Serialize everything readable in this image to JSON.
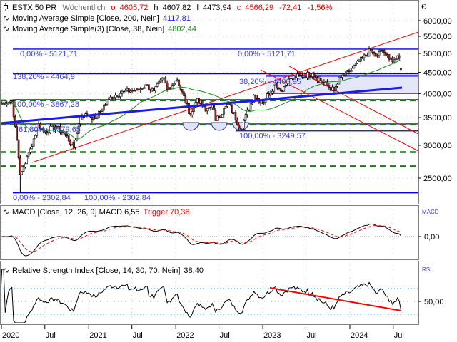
{
  "header": {
    "symbol": "ESTX 50 PR",
    "period": "Wöchentlich",
    "open_label": "o",
    "open": "4605,72",
    "high_label": "h",
    "high": "4607,82",
    "low_label": "l",
    "low": "4473,94",
    "close_label": "c",
    "close": "4566,29",
    "change": "-72,41",
    "change_pct": "-1,56%"
  },
  "legend": {
    "ma200": {
      "label": "Moving Average Simple  [Close, 200, Nein]",
      "value": "4117,81"
    },
    "ma38": {
      "label": "Moving Average Simple(3)  [Close, 38, Nein]",
      "value": "4802,44"
    },
    "macd": {
      "label": "MACD  [Close, 12, 26, 9]  MACD 6,55",
      "trigger": "Trigger 70,36"
    },
    "rsi": {
      "label": "Relative Strength Index  [Close, 14, 30, 70, Nein]",
      "value": "38,40"
    }
  },
  "colors": {
    "up": "#ffffff",
    "down": "#e02020",
    "fib": "#0000ee",
    "support": "#1a7a1a",
    "trend": "#ff0000",
    "ma38": "#1a8a1a",
    "macd": "#000000",
    "trigger": "#ff0000",
    "zone": "#e4e6fa"
  },
  "fib_labels": {
    "a_top": "0,00% - 5121,71",
    "b_top": "0,00% - 5121,71",
    "a_1382": "138,20% - 4464,9",
    "b_382": "38,20% - 4406,95",
    "a_100": "100,00% - 3867,28",
    "a_618": "61,80% - 3379,65",
    "b_100": "100,00% - 3249,57",
    "a_bottom": "0,00% - 2302,84",
    "a_bottom2": "100,00% - 2302,84"
  },
  "chart_data": [
    {
      "type": "candlestick",
      "title": "ESTX 50 PR",
      "scale": "log",
      "currency": "€",
      "ylim": [
        2200,
        6200
      ],
      "y_ticks": [
        "6000,00",
        "5500,00",
        "5000,00",
        "4500,00",
        "4000,00",
        "3500,00",
        "3000,00",
        "2500,00"
      ],
      "y_tick_values": [
        6000,
        5500,
        5000,
        4500,
        4000,
        3500,
        3000,
        2500
      ],
      "x_ticks": [
        "2020",
        "Jul",
        "2021",
        "Jul",
        "2022",
        "Jul",
        "2023",
        "Jul",
        "2024",
        "Jul"
      ],
      "x_tick_dates": [
        "2020-01-01",
        "2020-07-01",
        "2021-01-01",
        "2021-07-01",
        "2022-01-01",
        "2022-07-01",
        "2023-01-01",
        "2023-07-01",
        "2024-01-01",
        "2024-07-01"
      ],
      "grid": true,
      "close_anchors": [
        [
          "2019-12-27",
          3775
        ],
        [
          "2020-02-14",
          3840
        ],
        [
          "2020-02-28",
          3330
        ],
        [
          "2020-03-20",
          2550
        ],
        [
          "2020-04-03",
          2660
        ],
        [
          "2020-04-30",
          2930
        ],
        [
          "2020-06-05",
          3380
        ],
        [
          "2020-06-26",
          3230
        ],
        [
          "2020-08-14",
          3330
        ],
        [
          "2020-09-25",
          3190
        ],
        [
          "2020-10-30",
          2960
        ],
        [
          "2020-11-27",
          3530
        ],
        [
          "2020-12-31",
          3550
        ],
        [
          "2021-01-29",
          3480
        ],
        [
          "2021-03-31",
          3920
        ],
        [
          "2021-05-28",
          4040
        ],
        [
          "2021-07-30",
          4090
        ],
        [
          "2021-08-27",
          4200
        ],
        [
          "2021-09-30",
          4050
        ],
        [
          "2021-11-12",
          4370
        ],
        [
          "2021-11-26",
          4090
        ],
        [
          "2021-12-31",
          4300
        ],
        [
          "2022-01-07",
          4320
        ],
        [
          "2022-03-04",
          3550
        ],
        [
          "2022-03-31",
          3900
        ],
        [
          "2022-05-06",
          3630
        ],
        [
          "2022-06-03",
          3790
        ],
        [
          "2022-06-17",
          3440
        ],
        [
          "2022-08-12",
          3790
        ],
        [
          "2022-09-30",
          3280
        ],
        [
          "2022-11-25",
          3960
        ],
        [
          "2022-12-30",
          3790
        ],
        [
          "2023-02-24",
          4240
        ],
        [
          "2023-03-17",
          4060
        ],
        [
          "2023-04-28",
          4360
        ],
        [
          "2023-07-28",
          4470
        ],
        [
          "2023-10-27",
          4060
        ],
        [
          "2023-11-24",
          4380
        ],
        [
          "2023-12-29",
          4520
        ],
        [
          "2024-03-28",
          5080
        ],
        [
          "2024-04-19",
          4920
        ],
        [
          "2024-05-17",
          5090
        ],
        [
          "2024-06-14",
          4840
        ],
        [
          "2024-07-26",
          4860
        ],
        [
          "2024-08-02",
          4566.29
        ]
      ],
      "last_candle": {
        "open": 4605.72,
        "high": 4607.82,
        "low": 4473.94,
        "close": 4566.29
      },
      "all_time_low": {
        "date": "2020-03-20",
        "value": 2302.84
      },
      "fib_levels": [
        5121.71,
        4464.9,
        4406.95,
        3867.28,
        3379.65,
        3249.57,
        2302.84
      ],
      "support_levels": [
        3867.28,
        3379.65,
        2900,
        2680
      ],
      "zone": [
        4000,
        4430
      ],
      "ma_period": 38
    },
    {
      "type": "line",
      "title": "MACD",
      "series": [
        {
          "name": "MACD",
          "last": 6.55
        },
        {
          "name": "Trigger",
          "last": 70.36
        }
      ],
      "y_ticks": [
        "0,00"
      ],
      "y_tick_values": [
        0
      ]
    },
    {
      "type": "line",
      "title": "RSI",
      "series": [
        {
          "name": "RSI",
          "last": 38.4
        }
      ],
      "levels": [
        30,
        70
      ],
      "y_ticks": [
        "50,00"
      ],
      "y_tick_values": [
        50
      ]
    }
  ]
}
